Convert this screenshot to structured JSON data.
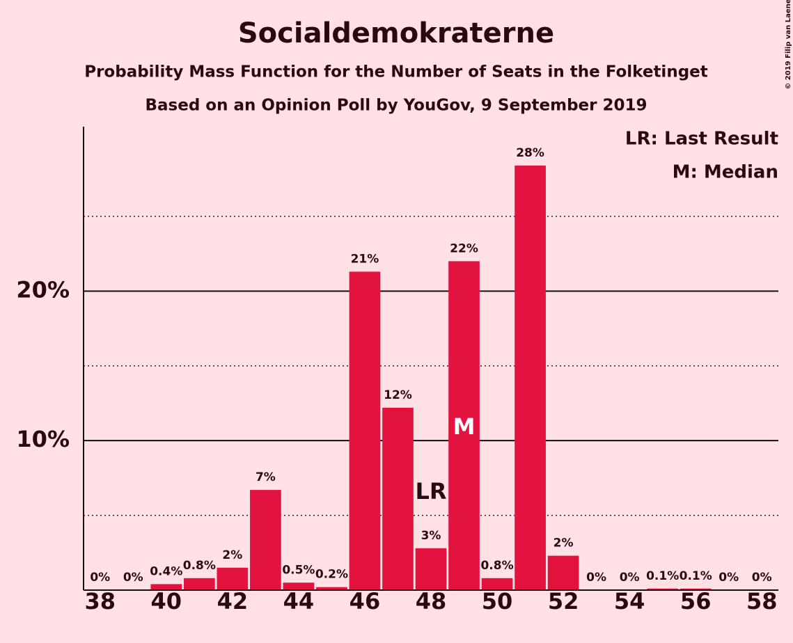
{
  "chart_data": {
    "type": "bar",
    "title": "Socialdemokraterne",
    "subtitle": "Probability Mass Function for the Number of Seats in the Folketinget",
    "subtitle2": "Based on an Opinion Poll by YouGov, 9 September 2019",
    "copyright": "© 2019 Filip van Laenen",
    "x": [
      38,
      39,
      40,
      41,
      42,
      43,
      44,
      45,
      46,
      47,
      48,
      49,
      50,
      51,
      52,
      53,
      54,
      55,
      56,
      57,
      58
    ],
    "values": [
      0,
      0,
      0.4,
      0.8,
      1.5,
      6.7,
      0.5,
      0.2,
      21.3,
      12.2,
      2.8,
      22,
      0.8,
      28.4,
      2.3,
      0,
      0,
      0.1,
      0.1,
      0,
      0
    ],
    "value_labels": [
      "0%",
      "0%",
      "0.4%",
      "0.8%",
      "2%",
      "7%",
      "0.5%",
      "0.2%",
      "21%",
      "12%",
      "3%",
      "22%",
      "0.8%",
      "28%",
      "2%",
      "0%",
      "0%",
      "0.1%",
      "0.1%",
      "0%",
      "0%"
    ],
    "color": "#e2133f",
    "xlim": [
      37.5,
      58.5
    ],
    "xticks": [
      38,
      40,
      42,
      44,
      46,
      48,
      50,
      52,
      54,
      56,
      58
    ],
    "ylim": [
      0,
      31
    ],
    "yticks": [
      {
        "value": 10,
        "label": "10%"
      },
      {
        "value": 20,
        "label": "20%"
      }
    ],
    "minor_yticks": [
      5,
      15,
      25
    ],
    "grid": true,
    "annotations": [
      {
        "label": "LR",
        "x": 48
      },
      {
        "label": "M",
        "x": 49
      }
    ],
    "legend": [
      "LR: Last Result",
      "M: Median"
    ],
    "legend_position": "upper right"
  }
}
